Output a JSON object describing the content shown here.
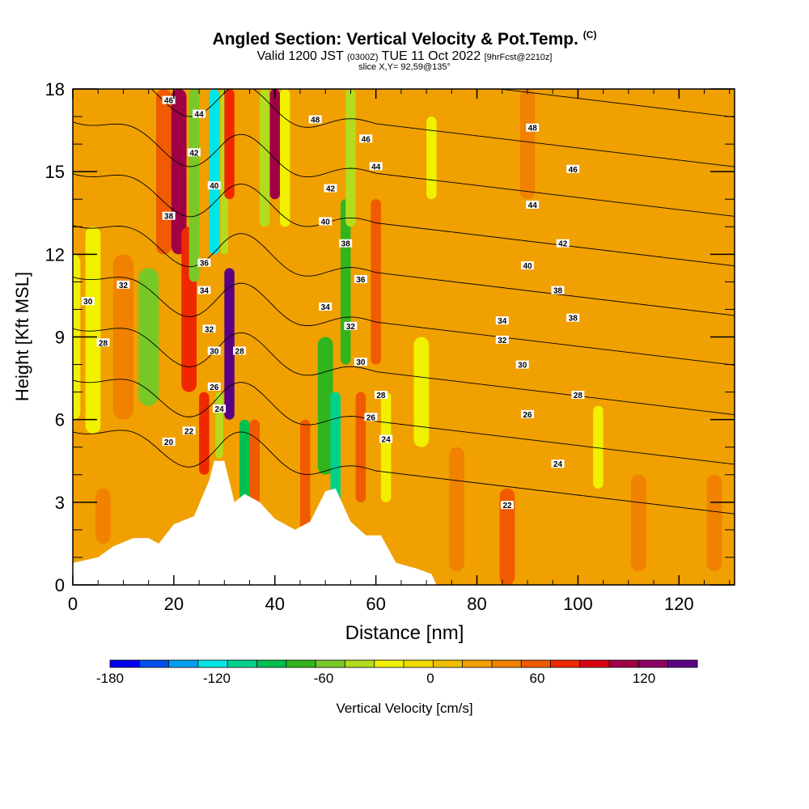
{
  "header": {
    "title": "Angled Section: Vertical Velocity & Pot.Temp.",
    "title_unit": "(C)",
    "valid_prefix": "Valid 1200 JST",
    "valid_utc": "(0300Z)",
    "valid_date": "TUE 11 Oct 2022",
    "forecast": "[9hrFcst@2210z]",
    "slice": "slice X,Y= 92,59@135°"
  },
  "chart_data": {
    "type": "heatmap",
    "xlabel": "Distance [nm]",
    "ylabel": "Height [Kft MSL]",
    "xlim": [
      0,
      131
    ],
    "ylim": [
      0,
      18
    ],
    "x_ticks": [
      0,
      20,
      40,
      60,
      80,
      100,
      120
    ],
    "y_ticks": [
      0,
      3,
      6,
      9,
      12,
      15,
      18
    ],
    "colorbar": {
      "label": "Vertical Velocity [cm/s]",
      "min": -180,
      "max": 150,
      "step": 15,
      "tick_labels": [
        -180,
        -120,
        -60,
        0,
        60,
        120
      ],
      "colors": [
        "#0000f0",
        "#0050f0",
        "#00a0f0",
        "#00e6e6",
        "#00d28c",
        "#00be50",
        "#32b41e",
        "#78c828",
        "#b4dc1e",
        "#f0f000",
        "#f0dc00",
        "#f0be00",
        "#f0a000",
        "#f08200",
        "#f05a00",
        "#f02800",
        "#dc0014",
        "#a00046",
        "#8c0064",
        "#5a0082"
      ]
    },
    "velocity_bands": [
      {
        "x": 0,
        "h0": 6,
        "h1": 12,
        "v": -45,
        "w": 3
      },
      {
        "x": 4,
        "h0": 5.5,
        "h1": 13,
        "v": -40,
        "w": 3
      },
      {
        "x": 6,
        "h0": 1.5,
        "h1": 3.5,
        "v": 25,
        "w": 3
      },
      {
        "x": 10,
        "h0": 6,
        "h1": 12,
        "v": 15,
        "w": 4
      },
      {
        "x": 15,
        "h0": 6.5,
        "h1": 11.5,
        "v": -70,
        "w": 4
      },
      {
        "x": 18,
        "h0": 12,
        "h1": 18,
        "v": 40,
        "w": 3
      },
      {
        "x": 21,
        "h0": 12,
        "h1": 18,
        "v": 80,
        "w": 3
      },
      {
        "x": 23,
        "h0": 7,
        "h1": 13,
        "v": 45,
        "w": 3
      },
      {
        "x": 24,
        "h0": 11,
        "h1": 18,
        "v": -75,
        "w": 2
      },
      {
        "x": 26,
        "h0": 4,
        "h1": 7,
        "v": 55,
        "w": 2
      },
      {
        "x": 28,
        "h0": 12,
        "h1": 18,
        "v": -125,
        "w": 2
      },
      {
        "x": 29,
        "h0": 4.6,
        "h1": 7,
        "v": -55,
        "w": 1.5
      },
      {
        "x": 30,
        "h0": 12,
        "h1": 18,
        "v": -60,
        "w": 1.5
      },
      {
        "x": 31,
        "h0": 6,
        "h1": 11.5,
        "v": 125,
        "w": 2
      },
      {
        "x": 31,
        "h0": 14,
        "h1": 18,
        "v": 55,
        "w": 2
      },
      {
        "x": 34,
        "h0": 3,
        "h1": 6,
        "v": -100,
        "w": 2
      },
      {
        "x": 36,
        "h0": 2.5,
        "h1": 6,
        "v": 35,
        "w": 2
      },
      {
        "x": 38,
        "h0": 13,
        "h1": 18,
        "v": -60,
        "w": 2
      },
      {
        "x": 40,
        "h0": 14,
        "h1": 18,
        "v": 75,
        "w": 2
      },
      {
        "x": 42,
        "h0": 13,
        "h1": 18,
        "v": -45,
        "w": 2
      },
      {
        "x": 46,
        "h0": 2,
        "h1": 6,
        "v": 30,
        "w": 2
      },
      {
        "x": 50,
        "h0": 4,
        "h1": 9,
        "v": -80,
        "w": 3
      },
      {
        "x": 52,
        "h0": 3,
        "h1": 7,
        "v": -110,
        "w": 2
      },
      {
        "x": 54,
        "h0": 8,
        "h1": 14,
        "v": -90,
        "w": 2
      },
      {
        "x": 55,
        "h0": 13,
        "h1": 18,
        "v": -50,
        "w": 2
      },
      {
        "x": 57,
        "h0": 3,
        "h1": 7,
        "v": 30,
        "w": 2
      },
      {
        "x": 60,
        "h0": 8,
        "h1": 14,
        "v": 30,
        "w": 2
      },
      {
        "x": 62,
        "h0": 3,
        "h1": 7,
        "v": -45,
        "w": 2
      },
      {
        "x": 69,
        "h0": 5,
        "h1": 9,
        "v": -35,
        "w": 3
      },
      {
        "x": 71,
        "h0": 14,
        "h1": 17,
        "v": -45,
        "w": 2
      },
      {
        "x": 76,
        "h0": 0.5,
        "h1": 5,
        "v": 25,
        "w": 3
      },
      {
        "x": 86,
        "h0": 0,
        "h1": 3.5,
        "v": 30,
        "w": 3
      },
      {
        "x": 90,
        "h0": 14,
        "h1": 18,
        "v": 20,
        "w": 3
      },
      {
        "x": 104,
        "h0": 3.5,
        "h1": 6.5,
        "v": -45,
        "w": 2
      },
      {
        "x": 112,
        "h0": 0.5,
        "h1": 4,
        "v": 20,
        "w": 3
      },
      {
        "x": 127,
        "h0": 0.5,
        "h1": 4,
        "v": 20,
        "w": 3
      }
    ],
    "terrain": [
      [
        0,
        0.8
      ],
      [
        5,
        1
      ],
      [
        8,
        1.4
      ],
      [
        12,
        1.7
      ],
      [
        15,
        1.7
      ],
      [
        17,
        1.5
      ],
      [
        20,
        2.2
      ],
      [
        24,
        2.5
      ],
      [
        27,
        3.8
      ],
      [
        28,
        4.5
      ],
      [
        30,
        4.5
      ],
      [
        32,
        3
      ],
      [
        34,
        3.3
      ],
      [
        37,
        3
      ],
      [
        40,
        2.4
      ],
      [
        44,
        2
      ],
      [
        47,
        2.3
      ],
      [
        50,
        3.4
      ],
      [
        52,
        3.5
      ],
      [
        55,
        2.3
      ],
      [
        58,
        1.8
      ],
      [
        61,
        1.8
      ],
      [
        64,
        0.8
      ],
      [
        68,
        0.6
      ],
      [
        71,
        0.4
      ],
      [
        72,
        0
      ],
      [
        131,
        0
      ]
    ],
    "isentropes": {
      "levels": [
        20,
        22,
        24,
        26,
        28,
        30,
        32,
        34,
        36,
        38,
        40,
        42,
        44,
        46,
        48
      ],
      "labels": [
        {
          "value": 20,
          "x": 19,
          "y": 5.2
        },
        {
          "value": 22,
          "x": 23,
          "y": 5.6
        },
        {
          "value": 24,
          "x": 29,
          "y": 6.4
        },
        {
          "value": 26,
          "x": 28,
          "y": 7.2
        },
        {
          "value": 28,
          "x": 33,
          "y": 8.5
        },
        {
          "value": 30,
          "x": 28,
          "y": 8.5
        },
        {
          "value": 32,
          "x": 27,
          "y": 9.3
        },
        {
          "value": 34,
          "x": 26,
          "y": 10.7
        },
        {
          "value": 36,
          "x": 26,
          "y": 11.7
        },
        {
          "value": 38,
          "x": 19,
          "y": 13.4
        },
        {
          "value": 40,
          "x": 28,
          "y": 14.5
        },
        {
          "value": 42,
          "x": 24,
          "y": 15.7
        },
        {
          "value": 44,
          "x": 25,
          "y": 17.1
        },
        {
          "value": 46,
          "x": 19,
          "y": 17.6
        },
        {
          "value": 32,
          "x": 10,
          "y": 10.9
        },
        {
          "value": 30,
          "x": 3,
          "y": 10.3
        },
        {
          "value": 28,
          "x": 6,
          "y": 8.8
        },
        {
          "value": 48,
          "x": 48,
          "y": 16.9
        },
        {
          "value": 46,
          "x": 58,
          "y": 16.2
        },
        {
          "value": 44,
          "x": 60,
          "y": 15.2
        },
        {
          "value": 42,
          "x": 51,
          "y": 14.4
        },
        {
          "value": 40,
          "x": 50,
          "y": 13.2
        },
        {
          "value": 38,
          "x": 54,
          "y": 12.4
        },
        {
          "value": 36,
          "x": 57,
          "y": 11.1
        },
        {
          "value": 34,
          "x": 50,
          "y": 10.1
        },
        {
          "value": 32,
          "x": 55,
          "y": 9.4
        },
        {
          "value": 30,
          "x": 57,
          "y": 8.1
        },
        {
          "value": 28,
          "x": 61,
          "y": 6.9
        },
        {
          "value": 26,
          "x": 59,
          "y": 6.1
        },
        {
          "value": 24,
          "x": 62,
          "y": 5.3
        },
        {
          "value": 48,
          "x": 91,
          "y": 16.6
        },
        {
          "value": 46,
          "x": 99,
          "y": 15.1
        },
        {
          "value": 44,
          "x": 91,
          "y": 13.8
        },
        {
          "value": 42,
          "x": 97,
          "y": 12.4
        },
        {
          "value": 40,
          "x": 90,
          "y": 11.6
        },
        {
          "value": 38,
          "x": 96,
          "y": 10.7
        },
        {
          "value": 38,
          "x": 99,
          "y": 9.7
        },
        {
          "value": 34,
          "x": 85,
          "y": 9.6
        },
        {
          "value": 32,
          "x": 85,
          "y": 8.9
        },
        {
          "value": 30,
          "x": 89,
          "y": 8.0
        },
        {
          "value": 28,
          "x": 100,
          "y": 6.9
        },
        {
          "value": 26,
          "x": 90,
          "y": 6.2
        },
        {
          "value": 24,
          "x": 96,
          "y": 4.4
        },
        {
          "value": 22,
          "x": 86,
          "y": 2.9
        }
      ]
    }
  }
}
